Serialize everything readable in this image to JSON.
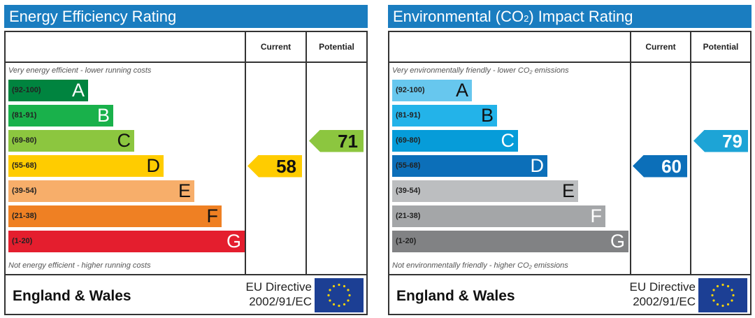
{
  "chart_data": [
    {
      "type": "bar",
      "title": "Energy Efficiency Rating",
      "column_headers": [
        "Current",
        "Potential"
      ],
      "top_note": "Very energy efficient - lower running costs",
      "bottom_note": "Not energy efficient - higher running costs",
      "categories": [
        "A",
        "B",
        "C",
        "D",
        "E",
        "F",
        "G"
      ],
      "ranges": [
        "(92-100)",
        "(81-91)",
        "(69-80)",
        "(55-68)",
        "(39-54)",
        "(21-38)",
        "(1-20)"
      ],
      "band_colors": [
        "#00843f",
        "#19b14b",
        "#8cc63f",
        "#ffcc00",
        "#f7ae6a",
        "#ef8023",
        "#e41e2e"
      ],
      "current": {
        "value": 58,
        "band": "D",
        "color": "#ffcc00"
      },
      "potential": {
        "value": 71,
        "band": "C",
        "color": "#8cc63f"
      },
      "footer": {
        "region": "England & Wales",
        "directive_line1": "EU Directive",
        "directive_line2": "2002/91/EC"
      }
    },
    {
      "type": "bar",
      "title": "Environmental (CO",
      "title_sub": "2",
      "title_end": ") Impact Rating",
      "column_headers": [
        "Current",
        "Potential"
      ],
      "top_note": "Very environmentally friendly - lower CO₂ emissions",
      "bottom_note": "Not environmentally friendly - higher CO₂ emissions",
      "categories": [
        "A",
        "B",
        "C",
        "D",
        "E",
        "F",
        "G"
      ],
      "ranges": [
        "(92-100)",
        "(81-91)",
        "(69-80)",
        "(55-68)",
        "(39-54)",
        "(21-38)",
        "(1-20)"
      ],
      "band_colors": [
        "#67c7ee",
        "#23b3e9",
        "#069cd9",
        "#0c6fb9",
        "#bcbec0",
        "#a4a6a8",
        "#818284"
      ],
      "current": {
        "value": 60,
        "band": "D",
        "color": "#0c6fb9"
      },
      "potential": {
        "value": 79,
        "band": "C",
        "color": "#1da4d6"
      },
      "footer": {
        "region": "England & Wales",
        "directive_line1": "EU Directive",
        "directive_line2": "2002/91/EC"
      }
    }
  ]
}
